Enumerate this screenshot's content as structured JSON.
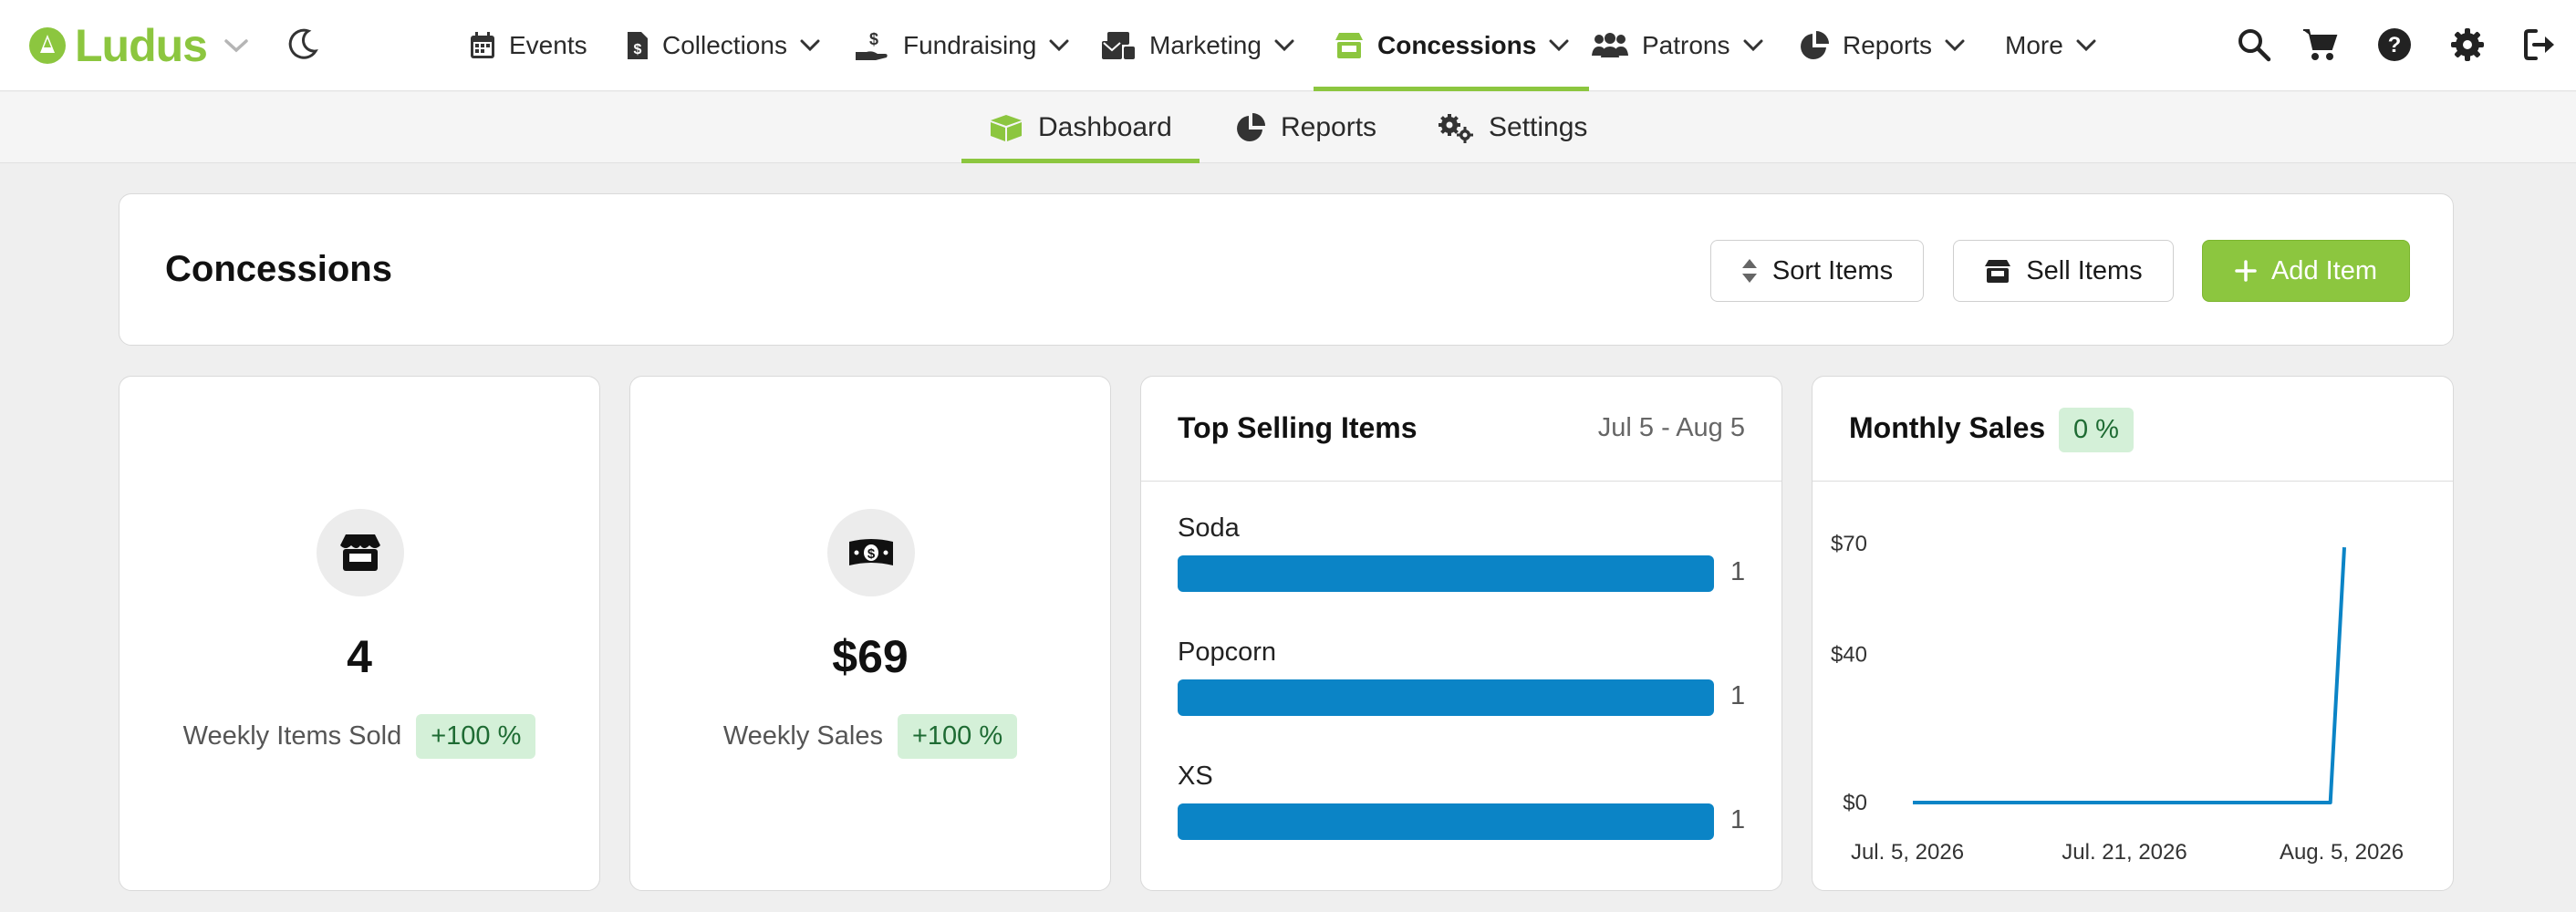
{
  "brand": {
    "name": "Ludus"
  },
  "nav": {
    "items": [
      {
        "label": "Events",
        "icon": "calendar-icon"
      },
      {
        "label": "Collections",
        "icon": "file-dollar-icon"
      },
      {
        "label": "Fundraising",
        "icon": "hand-dollar-icon"
      },
      {
        "label": "Marketing",
        "icon": "mail-bulk-icon"
      },
      {
        "label": "Concessions",
        "icon": "store-icon",
        "active": true
      },
      {
        "label": "Patrons",
        "icon": "users-icon"
      },
      {
        "label": "Reports",
        "icon": "pie-chart-icon"
      },
      {
        "label": "More"
      }
    ]
  },
  "subnav": {
    "items": [
      {
        "label": "Dashboard",
        "icon": "box-icon",
        "active": true
      },
      {
        "label": "Reports",
        "icon": "pie-chart-icon"
      },
      {
        "label": "Settings",
        "icon": "gears-icon"
      }
    ]
  },
  "header": {
    "title": "Concessions",
    "sort_label": "Sort Items",
    "sell_label": "Sell Items",
    "add_label": "Add Item"
  },
  "stats": {
    "items_sold": {
      "value": "4",
      "label": "Weekly Items Sold",
      "change": "+100 %"
    },
    "sales": {
      "value": "$69",
      "label": "Weekly Sales",
      "change": "+100 %"
    }
  },
  "top_selling": {
    "title": "Top Selling Items",
    "range": "Jul 5 - Aug 5",
    "items": [
      {
        "name": "Soda",
        "count": "1"
      },
      {
        "name": "Popcorn",
        "count": "1"
      },
      {
        "name": "XS",
        "count": "1"
      }
    ]
  },
  "monthly_sales": {
    "title": "Monthly Sales",
    "change": "0 %"
  },
  "chart_data": {
    "type": "line",
    "title": "Monthly Sales",
    "xlabel": "",
    "ylabel": "",
    "x_ticks": [
      "Jul. 5, 2026",
      "Jul. 21, 2026",
      "Aug. 5, 2026"
    ],
    "y_ticks": [
      "$0",
      "$40",
      "$70"
    ],
    "ylim": [
      0,
      70
    ],
    "grid": false,
    "series": [
      {
        "values": [
          {
            "x": "Jul. 5, 2026",
            "y": 0
          },
          {
            "x": "Aug. 4, 2026",
            "y": 0
          },
          {
            "x": "Aug. 5, 2026",
            "y": 69
          }
        ]
      }
    ]
  },
  "colors": {
    "accent": "#8cc63f",
    "bar": "#0b84c6",
    "badge_bg": "#d4f0d8",
    "badge_text": "#1e6b33"
  }
}
